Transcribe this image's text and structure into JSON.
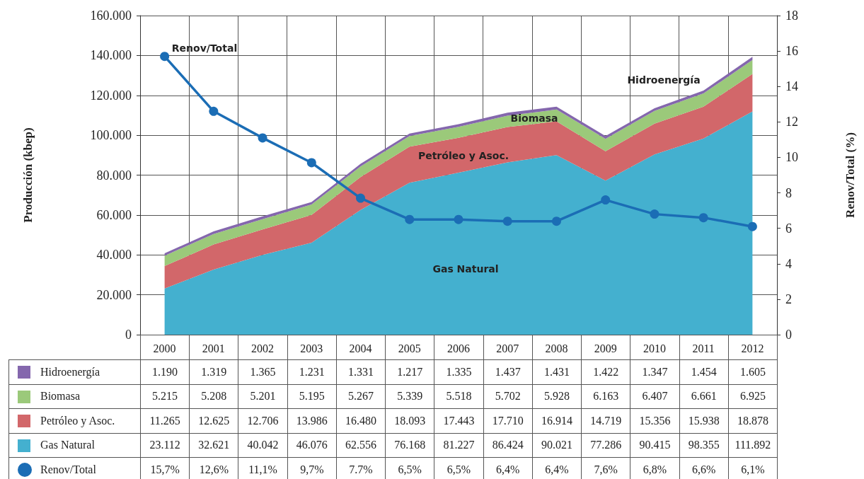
{
  "chart_data": {
    "type": "area",
    "stacked": true,
    "grid": true,
    "marker": "none",
    "xlabel": null,
    "ylabel": "Producción (kbep)",
    "y2label": "Renov/Total (%)",
    "categories": [
      "2000",
      "2001",
      "2002",
      "2003",
      "2004",
      "2005",
      "2006",
      "2007",
      "2008",
      "2009",
      "2010",
      "2011",
      "2012"
    ],
    "ylim": [
      0,
      160000
    ],
    "yticks": [
      {
        "value": 0,
        "label": "0"
      },
      {
        "value": 20000,
        "label": "20.000"
      },
      {
        "value": 40000,
        "label": "40.000"
      },
      {
        "value": 60000,
        "label": "60.000"
      },
      {
        "value": 80000,
        "label": "80.000"
      },
      {
        "value": 100000,
        "label": "100.000"
      },
      {
        "value": 120000,
        "label": "120.000"
      },
      {
        "value": 140000,
        "label": "140.000"
      },
      {
        "value": 160000,
        "label": "160.000"
      }
    ],
    "y2lim": [
      0,
      18
    ],
    "y2ticks": [
      0,
      2,
      4,
      6,
      8,
      10,
      12,
      14,
      16,
      18
    ],
    "series": [
      {
        "name": "Gas Natural",
        "color": "#44b0cf",
        "values": [
          23112,
          32621,
          40042,
          46076,
          62556,
          76168,
          81227,
          86424,
          90021,
          77286,
          90415,
          98355,
          111892
        ],
        "value_labels": [
          "23.112",
          "32.621",
          "40.042",
          "46.076",
          "62.556",
          "76.168",
          "81.227",
          "86.424",
          "90.021",
          "77.286",
          "90.415",
          "98.355",
          "111.892"
        ]
      },
      {
        "name": "Petróleo y Asoc.",
        "color": "#d2676a",
        "values": [
          11265,
          12625,
          12706,
          13986,
          16480,
          18093,
          17443,
          17710,
          16914,
          14719,
          15356,
          15938,
          18878
        ],
        "value_labels": [
          "11.265",
          "12.625",
          "12.706",
          "13.986",
          "16.480",
          "18.093",
          "17.443",
          "17.710",
          "16.914",
          "14.719",
          "15.356",
          "15.938",
          "18.878"
        ]
      },
      {
        "name": "Biomasa",
        "color": "#9bc97a",
        "values": [
          5215,
          5208,
          5201,
          5195,
          5267,
          5339,
          5518,
          5702,
          5928,
          6163,
          6407,
          6661,
          6925
        ],
        "value_labels": [
          "5.215",
          "5.208",
          "5.201",
          "5.195",
          "5.267",
          "5.339",
          "5.518",
          "5.702",
          "5.928",
          "6.163",
          "6.407",
          "6.661",
          "6.925"
        ]
      },
      {
        "name": "Hidroenergía",
        "color": "#8467ad",
        "values": [
          1190,
          1319,
          1365,
          1231,
          1331,
          1217,
          1335,
          1437,
          1431,
          1422,
          1347,
          1454,
          1605
        ],
        "value_labels": [
          "1.190",
          "1.319",
          "1.365",
          "1.231",
          "1.331",
          "1.217",
          "1.335",
          "1.437",
          "1.431",
          "1.422",
          "1.347",
          "1.454",
          "1.605"
        ]
      },
      {
        "name": "Renov/Total",
        "type": "line",
        "axis": "y2",
        "marker": "circle",
        "color": "#1b6db5",
        "values": [
          15.7,
          12.6,
          11.1,
          9.7,
          7.7,
          6.5,
          6.5,
          6.4,
          6.4,
          7.6,
          6.8,
          6.6,
          6.1
        ],
        "value_labels": [
          "15,7%",
          "12,6%",
          "11,1%",
          "9,7%",
          "7.7%",
          "6,5%",
          "6,5%",
          "6,4%",
          "6,4%",
          "7,6%",
          "6,8%",
          "6,6%",
          "6,1%"
        ]
      }
    ],
    "legend": "bottom left",
    "annotations": [
      "Renov/Total",
      "Hidroenergía",
      "Biomasa",
      "Petróleo y Asoc.",
      "Gas Natural"
    ]
  }
}
